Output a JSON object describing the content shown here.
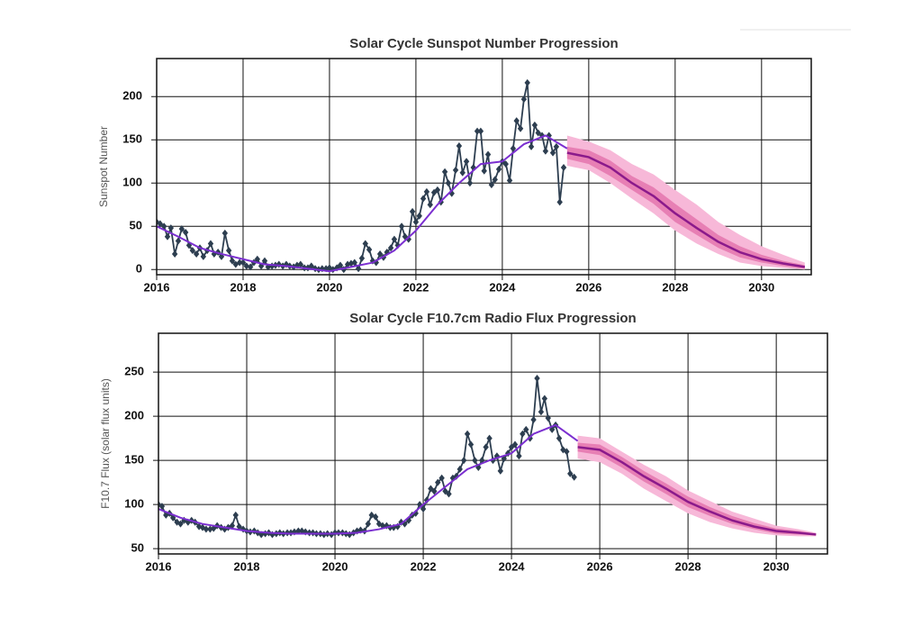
{
  "chart_data": [
    {
      "type": "line",
      "title": "Solar Cycle Sunspot Number Progression",
      "y_label": "Sunspot Number",
      "xlim": [
        2016,
        2031.15
      ],
      "ylim": [
        -6,
        244
      ],
      "xticks": [
        2016,
        2018,
        2020,
        2022,
        2024,
        2026,
        2028,
        2030
      ],
      "yticks": [
        0,
        50,
        100,
        150,
        200
      ],
      "grid": true,
      "bands": [
        {
          "color": "#f7b8d8",
          "x": [
            2025.5,
            2026,
            2026.5,
            2027,
            2027.5,
            2028,
            2028.5,
            2029,
            2029.5,
            2030,
            2030.5,
            2031
          ],
          "upper": [
            155,
            148,
            138,
            122,
            110,
            92,
            75,
            55,
            40,
            27,
            17,
            8
          ],
          "lower": [
            120,
            115,
            100,
            82,
            65,
            45,
            30,
            18,
            8,
            4,
            2,
            0
          ]
        },
        {
          "color": "#e77fb4",
          "x": [
            2025.5,
            2026,
            2026.5,
            2027,
            2027.5,
            2028,
            2028.5,
            2029,
            2029.5,
            2030,
            2030.5,
            2031
          ],
          "upper": [
            142,
            138,
            126,
            108,
            95,
            76,
            58,
            40,
            27,
            17,
            10,
            5
          ],
          "lower": [
            128,
            122,
            108,
            92,
            76,
            55,
            40,
            25,
            14,
            8,
            4,
            1
          ]
        }
      ],
      "series": [
        {
          "color": "#8b1a8b",
          "width": 2.5,
          "x": [
            2025.5,
            2026,
            2026.5,
            2027,
            2027.5,
            2028,
            2028.5,
            2029,
            2029.5,
            2030,
            2030.5,
            2031
          ],
          "values": [
            135,
            130,
            118,
            100,
            85,
            65,
            48,
            32,
            20,
            12,
            7,
            3
          ]
        },
        {
          "color": "#2d3e50",
          "width": 1.8,
          "marker": "diamond",
          "x": [
            2016,
            2016.08,
            2016.17,
            2016.25,
            2016.33,
            2016.42,
            2016.5,
            2016.58,
            2016.67,
            2016.75,
            2016.83,
            2016.92,
            2017,
            2017.08,
            2017.17,
            2017.25,
            2017.33,
            2017.42,
            2017.5,
            2017.58,
            2017.67,
            2017.75,
            2017.83,
            2017.92,
            2018,
            2018.08,
            2018.17,
            2018.25,
            2018.33,
            2018.42,
            2018.5,
            2018.58,
            2018.67,
            2018.75,
            2018.83,
            2018.92,
            2019,
            2019.08,
            2019.17,
            2019.25,
            2019.33,
            2019.42,
            2019.5,
            2019.58,
            2019.67,
            2019.75,
            2019.83,
            2019.92,
            2020,
            2020.08,
            2020.17,
            2020.25,
            2020.33,
            2020.42,
            2020.5,
            2020.58,
            2020.67,
            2020.75,
            2020.83,
            2020.92,
            2021,
            2021.08,
            2021.17,
            2021.25,
            2021.33,
            2021.42,
            2021.5,
            2021.58,
            2021.67,
            2021.75,
            2021.83,
            2021.92,
            2022,
            2022.08,
            2022.17,
            2022.25,
            2022.33,
            2022.42,
            2022.5,
            2022.58,
            2022.67,
            2022.75,
            2022.83,
            2022.92,
            2023,
            2023.08,
            2023.17,
            2023.25,
            2023.33,
            2023.42,
            2023.5,
            2023.58,
            2023.67,
            2023.75,
            2023.83,
            2023.92,
            2024,
            2024.08,
            2024.17,
            2024.25,
            2024.33,
            2024.42,
            2024.5,
            2024.58,
            2024.67,
            2024.75,
            2024.83,
            2024.92,
            2025,
            2025.08,
            2025.17,
            2025.25,
            2025.33,
            2025.42
          ],
          "values": [
            55,
            53,
            50,
            38,
            48,
            18,
            33,
            47,
            43,
            28,
            22,
            18,
            25,
            15,
            22,
            30,
            18,
            20,
            15,
            42,
            22,
            10,
            6,
            8,
            8,
            4,
            3,
            8,
            12,
            4,
            10,
            3,
            4,
            5,
            6,
            4,
            6,
            4,
            3,
            5,
            6,
            2,
            2,
            4,
            1,
            0,
            1,
            1,
            2,
            0,
            2,
            5,
            0,
            6,
            7,
            8,
            1,
            13,
            30,
            23,
            10,
            8,
            18,
            14,
            20,
            25,
            35,
            28,
            50,
            38,
            35,
            67,
            55,
            62,
            82,
            90,
            75,
            89,
            92,
            78,
            113,
            100,
            88,
            115,
            143,
            112,
            125,
            100,
            118,
            160,
            160,
            114,
            133,
            98,
            104,
            116,
            125,
            122,
            103,
            140,
            172,
            163,
            197,
            216,
            142,
            167,
            158,
            155,
            137,
            155,
            135,
            142,
            78,
            118
          ]
        },
        {
          "color": "#7b2fd0",
          "width": 2,
          "x": [
            2016,
            2016.5,
            2017,
            2017.5,
            2018,
            2018.5,
            2019,
            2019.5,
            2020,
            2020.5,
            2021,
            2021.5,
            2022,
            2022.5,
            2023,
            2023.5,
            2024,
            2024.5,
            2025,
            2025.5
          ],
          "values": [
            50,
            38,
            25,
            18,
            12,
            6,
            4,
            1,
            -2,
            3,
            8,
            22,
            45,
            75,
            100,
            122,
            125,
            145,
            155,
            140
          ]
        }
      ]
    },
    {
      "type": "line",
      "title": "Solar Cycle F10.7cm Radio Flux Progression",
      "y_label": "F10.7 Flux (solar flux units)",
      "xlim": [
        2016,
        2031.16
      ],
      "ylim": [
        44,
        294
      ],
      "xticks": [
        2016,
        2018,
        2020,
        2022,
        2024,
        2026,
        2028,
        2030
      ],
      "yticks": [
        50,
        100,
        150,
        200,
        250
      ],
      "grid": true,
      "bands": [
        {
          "color": "#f7b8d8",
          "x": [
            2025.5,
            2026,
            2026.5,
            2027,
            2027.5,
            2028,
            2028.5,
            2029,
            2029.5,
            2030,
            2030.5,
            2030.9
          ],
          "upper": [
            178,
            175,
            160,
            145,
            132,
            116,
            104,
            92,
            84,
            76,
            72,
            68
          ],
          "lower": [
            152,
            148,
            135,
            118,
            104,
            90,
            80,
            73,
            68,
            65,
            64,
            64
          ]
        },
        {
          "color": "#e77fb4",
          "x": [
            2025.5,
            2026,
            2026.5,
            2027,
            2027.5,
            2028,
            2028.5,
            2029,
            2029.5,
            2030,
            2030.5,
            2030.9
          ],
          "upper": [
            170,
            168,
            154,
            138,
            124,
            109,
            97,
            87,
            79,
            73,
            70,
            67
          ],
          "lower": [
            160,
            156,
            142,
            126,
            112,
            97,
            87,
            78,
            72,
            67,
            66,
            65
          ]
        }
      ],
      "series": [
        {
          "color": "#8b1a8b",
          "width": 2.5,
          "x": [
            2025.5,
            2026,
            2026.5,
            2027,
            2027.5,
            2028,
            2028.5,
            2029,
            2029.5,
            2030,
            2030.5,
            2030.9
          ],
          "values": [
            165,
            162,
            148,
            132,
            118,
            103,
            92,
            82,
            75,
            70,
            68,
            66
          ]
        },
        {
          "color": "#2d3e50",
          "width": 1.8,
          "marker": "diamond",
          "x": [
            2016,
            2016.08,
            2016.17,
            2016.25,
            2016.33,
            2016.42,
            2016.5,
            2016.58,
            2016.67,
            2016.75,
            2016.83,
            2016.92,
            2017,
            2017.08,
            2017.17,
            2017.25,
            2017.33,
            2017.42,
            2017.5,
            2017.58,
            2017.67,
            2017.75,
            2017.83,
            2017.92,
            2018,
            2018.08,
            2018.17,
            2018.25,
            2018.33,
            2018.42,
            2018.5,
            2018.58,
            2018.67,
            2018.75,
            2018.83,
            2018.92,
            2019,
            2019.08,
            2019.17,
            2019.25,
            2019.33,
            2019.42,
            2019.5,
            2019.58,
            2019.67,
            2019.75,
            2019.83,
            2019.92,
            2020,
            2020.08,
            2020.17,
            2020.25,
            2020.33,
            2020.42,
            2020.5,
            2020.58,
            2020.67,
            2020.75,
            2020.83,
            2020.92,
            2021,
            2021.08,
            2021.17,
            2021.25,
            2021.33,
            2021.42,
            2021.5,
            2021.58,
            2021.67,
            2021.75,
            2021.83,
            2021.92,
            2022,
            2022.08,
            2022.17,
            2022.25,
            2022.33,
            2022.42,
            2022.5,
            2022.58,
            2022.67,
            2022.75,
            2022.83,
            2022.92,
            2023,
            2023.08,
            2023.17,
            2023.25,
            2023.33,
            2023.42,
            2023.5,
            2023.58,
            2023.67,
            2023.75,
            2023.83,
            2023.92,
            2024,
            2024.08,
            2024.17,
            2024.25,
            2024.33,
            2024.42,
            2024.5,
            2024.58,
            2024.67,
            2024.75,
            2024.83,
            2024.92,
            2025,
            2025.08,
            2025.17,
            2025.25,
            2025.33,
            2025.42
          ],
          "values": [
            100,
            98,
            88,
            90,
            85,
            80,
            78,
            82,
            80,
            82,
            80,
            75,
            74,
            72,
            72,
            73,
            76,
            74,
            72,
            74,
            76,
            88,
            75,
            72,
            70,
            69,
            70,
            68,
            66,
            67,
            68,
            66,
            67,
            68,
            67,
            68,
            68,
            69,
            70,
            70,
            69,
            68,
            68,
            67,
            67,
            66,
            67,
            66,
            68,
            68,
            68,
            67,
            66,
            68,
            70,
            71,
            70,
            78,
            88,
            86,
            78,
            76,
            76,
            74,
            74,
            75,
            80,
            78,
            82,
            88,
            90,
            100,
            95,
            105,
            118,
            115,
            125,
            130,
            115,
            112,
            130,
            132,
            140,
            150,
            180,
            168,
            150,
            142,
            150,
            165,
            175,
            150,
            155,
            138,
            152,
            158,
            165,
            168,
            155,
            180,
            185,
            175,
            196,
            243,
            205,
            220,
            198,
            185,
            190,
            175,
            162,
            160,
            135,
            131
          ]
        },
        {
          "color": "#7b2fd0",
          "width": 2,
          "x": [
            2016,
            2016.5,
            2017,
            2017.5,
            2018,
            2018.5,
            2019,
            2019.5,
            2020,
            2020.5,
            2021,
            2021.5,
            2022,
            2022.5,
            2023,
            2023.5,
            2024,
            2024.5,
            2025,
            2025.5
          ],
          "values": [
            95,
            85,
            78,
            74,
            70,
            68,
            67,
            67,
            67,
            68,
            72,
            78,
            100,
            120,
            140,
            150,
            158,
            180,
            190,
            172
          ]
        }
      ]
    }
  ]
}
